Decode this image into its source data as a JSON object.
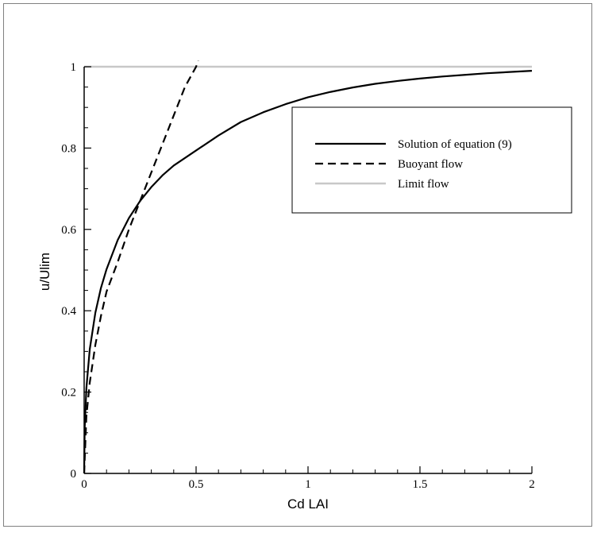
{
  "chart_data": {
    "type": "line",
    "xlabel": "Cd LAI",
    "ylabel": "u/Ulim",
    "xlim": [
      0,
      2
    ],
    "ylim": [
      0,
      1
    ],
    "xticks": [
      0,
      0.5,
      1,
      1.5,
      2
    ],
    "xtick_labels": [
      "0",
      "0.5",
      "1",
      "1.5",
      "2"
    ],
    "yticks": [
      0,
      0.2,
      0.4,
      0.6,
      0.8,
      1
    ],
    "ytick_labels": [
      "0",
      "0.2",
      "0.4",
      "0.6",
      "0.8",
      "1"
    ],
    "grid": false,
    "legend_position": "right",
    "series": [
      {
        "name": "Solution of equation (9)",
        "style": "solid",
        "color": "#000000",
        "x": [
          0,
          0.0025,
          0.01,
          0.025,
          0.05,
          0.075,
          0.1,
          0.15,
          0.2,
          0.25,
          0.3,
          0.35,
          0.4,
          0.5,
          0.6,
          0.7,
          0.8,
          0.9,
          1.0,
          1.1,
          1.2,
          1.3,
          1.4,
          1.5,
          1.6,
          1.7,
          1.8,
          1.9,
          2.0
        ],
        "y": [
          0,
          0.113,
          0.21,
          0.305,
          0.395,
          0.456,
          0.502,
          0.574,
          0.628,
          0.67,
          0.704,
          0.733,
          0.757,
          0.794,
          0.831,
          0.864,
          0.888,
          0.908,
          0.925,
          0.938,
          0.949,
          0.958,
          0.965,
          0.971,
          0.976,
          0.98,
          0.984,
          0.987,
          0.99
        ]
      },
      {
        "name": "Buoyant flow",
        "style": "dashed",
        "color": "#000000",
        "x": [
          0,
          0.01,
          0.025,
          0.05,
          0.075,
          0.1,
          0.15,
          0.2,
          0.25,
          0.3,
          0.35,
          0.4,
          0.45,
          0.5,
          0.51
        ],
        "y": [
          0,
          0.141,
          0.223,
          0.316,
          0.387,
          0.447,
          0.52,
          0.6,
          0.67,
          0.74,
          0.81,
          0.88,
          0.95,
          1.0,
          1.015
        ]
      },
      {
        "name": "Limit flow",
        "style": "solid",
        "color": "#c8c8c8",
        "x": [
          0,
          2
        ],
        "y": [
          1,
          1
        ]
      }
    ]
  }
}
